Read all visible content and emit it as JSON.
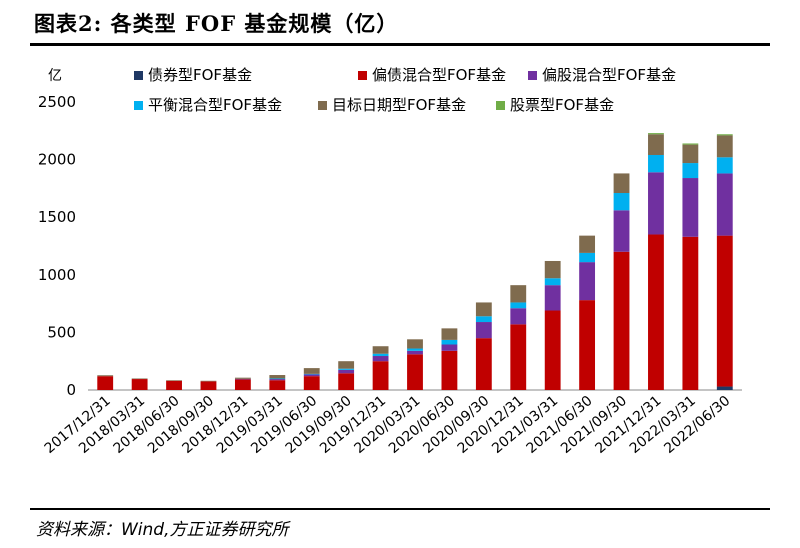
{
  "title": "图表2:   各类型 FOF 基金规模（亿）",
  "source": "资料来源：Wind,方正证券研究所",
  "chart_data": {
    "type": "bar",
    "stacked": true,
    "y_unit": "亿",
    "ylim": [
      0,
      2500
    ],
    "yticks": [
      0,
      500,
      1000,
      1500,
      2000,
      2500
    ],
    "grid": false,
    "legend_position": "top",
    "categories": [
      "2017/12/31",
      "2018/03/31",
      "2018/06/30",
      "2018/09/30",
      "2018/12/31",
      "2019/03/31",
      "2019/06/30",
      "2019/09/30",
      "2019/12/31",
      "2020/03/31",
      "2020/06/30",
      "2020/09/30",
      "2020/12/31",
      "2021/03/31",
      "2021/06/30",
      "2021/09/30",
      "2021/12/31",
      "2022/03/31",
      "2022/06/30"
    ],
    "series": [
      {
        "name": "债券型FOF基金",
        "color": "#1f3864",
        "values": [
          0,
          0,
          0,
          0,
          0,
          0,
          0,
          0,
          0,
          0,
          0,
          0,
          0,
          0,
          0,
          0,
          0,
          0,
          30
        ]
      },
      {
        "name": "偏债混合型FOF基金",
        "color": "#c00000",
        "values": [
          120,
          95,
          80,
          75,
          92,
          85,
          120,
          145,
          250,
          310,
          340,
          450,
          570,
          690,
          780,
          1200,
          1350,
          1330,
          1310
        ]
      },
      {
        "name": "偏股混合型FOF基金",
        "color": "#7030a0",
        "values": [
          0,
          0,
          0,
          0,
          5,
          10,
          15,
          30,
          45,
          30,
          55,
          140,
          140,
          220,
          330,
          360,
          540,
          510,
          540
        ]
      },
      {
        "name": "平衡混合型FOF基金",
        "color": "#00b0f0",
        "values": [
          0,
          0,
          0,
          0,
          0,
          5,
          5,
          10,
          20,
          20,
          40,
          50,
          50,
          60,
          80,
          150,
          150,
          130,
          140
        ]
      },
      {
        "name": "目标日期型FOF基金",
        "color": "#7f6b4e",
        "values": [
          8,
          5,
          5,
          5,
          10,
          30,
          50,
          65,
          65,
          80,
          100,
          120,
          150,
          150,
          150,
          170,
          180,
          160,
          190
        ]
      },
      {
        "name": "股票型FOF基金",
        "color": "#70ad47",
        "values": [
          0,
          0,
          0,
          0,
          0,
          0,
          0,
          0,
          0,
          0,
          0,
          0,
          0,
          0,
          0,
          0,
          10,
          10,
          10
        ]
      }
    ]
  }
}
